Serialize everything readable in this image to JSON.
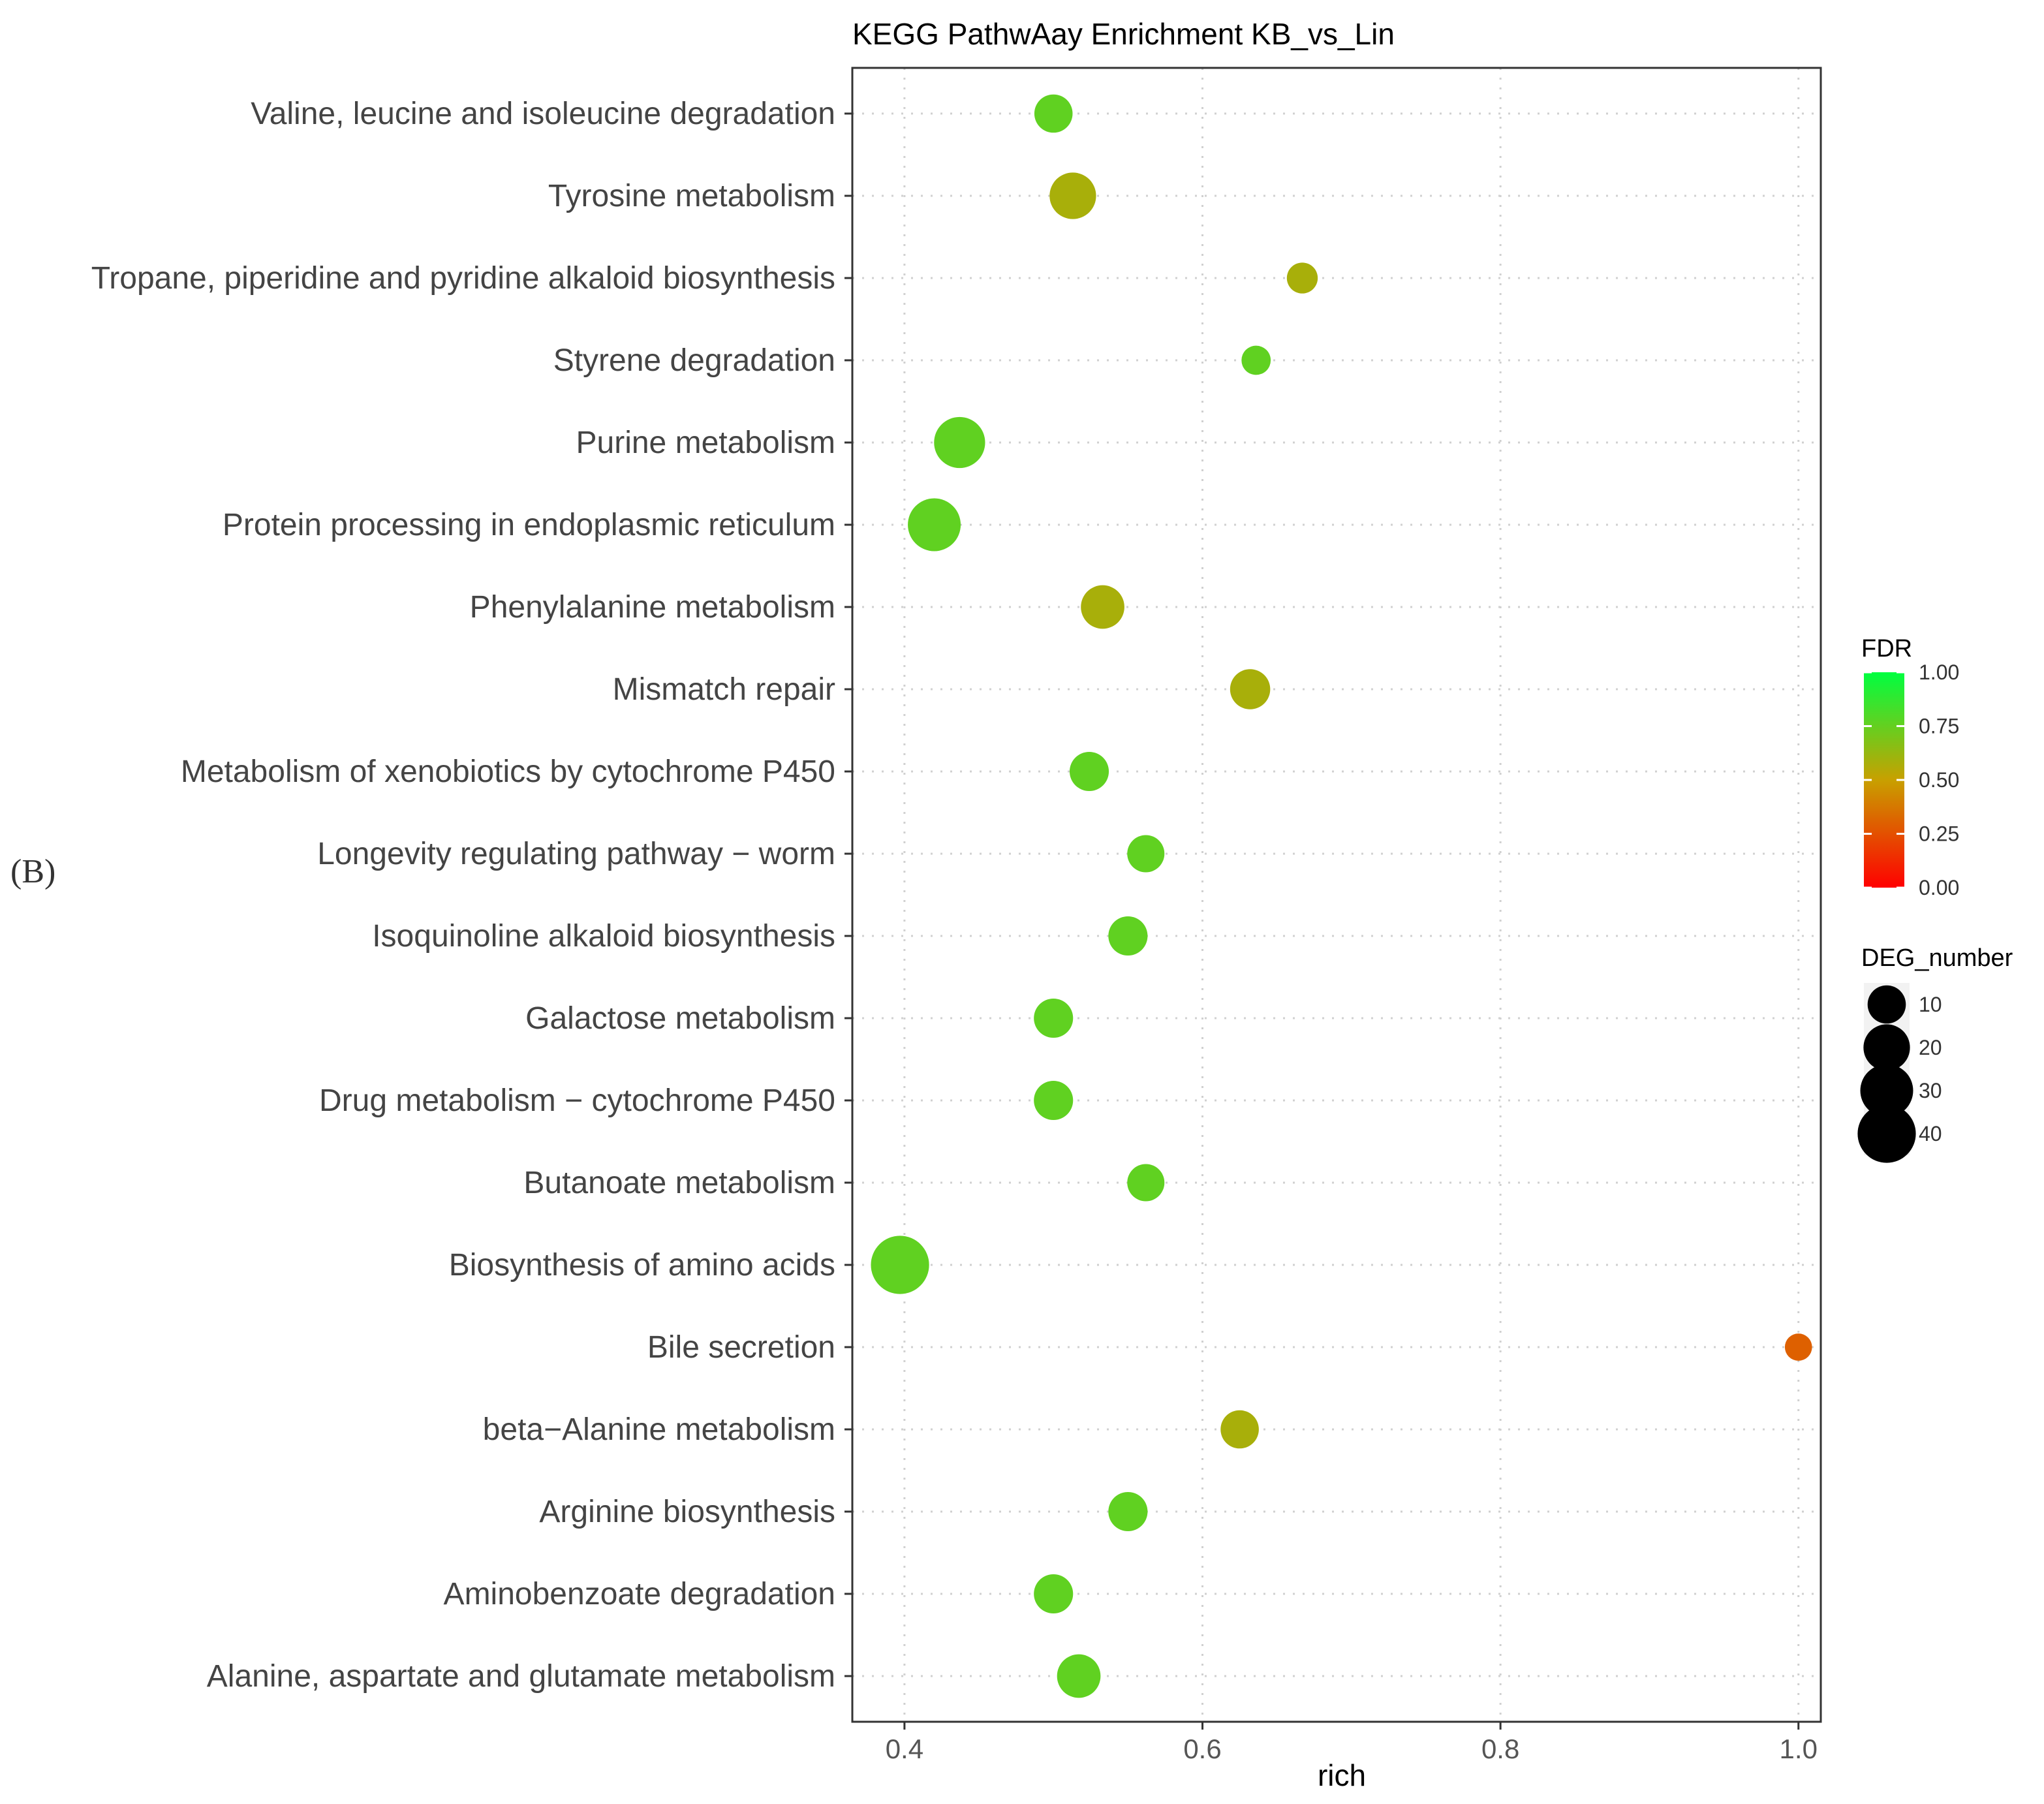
{
  "figure_label": "(B)",
  "chart_data": {
    "type": "scatter",
    "title": "KEGG PathwAay Enrichment  KB_vs_Lin",
    "xlabel": "rich",
    "ylabel": "",
    "xlim": [
      0.365,
      1.015
    ],
    "xticks": [
      0.4,
      0.6,
      0.8,
      1.0
    ],
    "xtick_labels": [
      "0.4",
      "0.6",
      "0.8",
      "1.0"
    ],
    "grid": true,
    "points": [
      {
        "pathway": "Valine, leucine and isoleucine degradation",
        "rich": 0.5,
        "deg_number": 10,
        "fdr": 0.76
      },
      {
        "pathway": "Tyrosine metabolism",
        "rich": 0.513,
        "deg_number": 20,
        "fdr": 0.58
      },
      {
        "pathway": "Tropane, piperidine and pyridine alkaloid biosynthesis",
        "rich": 0.667,
        "deg_number": 4,
        "fdr": 0.58
      },
      {
        "pathway": "Styrene degradation",
        "rich": 0.636,
        "deg_number": 3,
        "fdr": 0.76
      },
      {
        "pathway": "Purine metabolism",
        "rich": 0.437,
        "deg_number": 27,
        "fdr": 0.76
      },
      {
        "pathway": "Protein processing in endoplasmic reticulum",
        "rich": 0.42,
        "deg_number": 30,
        "fdr": 0.76
      },
      {
        "pathway": "Phenylalanine metabolism",
        "rich": 0.533,
        "deg_number": 16,
        "fdr": 0.58
      },
      {
        "pathway": "Mismatch repair",
        "rich": 0.632,
        "deg_number": 12,
        "fdr": 0.58
      },
      {
        "pathway": "Metabolism of xenobiotics by cytochrome P450",
        "rich": 0.524,
        "deg_number": 11,
        "fdr": 0.76
      },
      {
        "pathway": "Longevity regulating pathway − worm",
        "rich": 0.562,
        "deg_number": 9,
        "fdr": 0.76
      },
      {
        "pathway": "Isoquinoline alkaloid biosynthesis",
        "rich": 0.55,
        "deg_number": 11,
        "fdr": 0.76
      },
      {
        "pathway": "Galactose metabolism",
        "rich": 0.5,
        "deg_number": 11,
        "fdr": 0.76
      },
      {
        "pathway": "Drug metabolism − cytochrome P450",
        "rich": 0.5,
        "deg_number": 11,
        "fdr": 0.76
      },
      {
        "pathway": "Butanoate metabolism",
        "rich": 0.562,
        "deg_number": 9,
        "fdr": 0.76
      },
      {
        "pathway": "Biosynthesis of amino acids",
        "rich": 0.397,
        "deg_number": 40,
        "fdr": 0.76
      },
      {
        "pathway": "Bile secretion",
        "rich": 1.0,
        "deg_number": 2,
        "fdr": 0.3
      },
      {
        "pathway": "beta−Alanine metabolism",
        "rich": 0.625,
        "deg_number": 10,
        "fdr": 0.58
      },
      {
        "pathway": "Arginine biosynthesis",
        "rich": 0.55,
        "deg_number": 11,
        "fdr": 0.76
      },
      {
        "pathway": "Aminobenzoate degradation",
        "rich": 0.5,
        "deg_number": 11,
        "fdr": 0.76
      },
      {
        "pathway": "Alanine, aspartate and glutamate metabolism",
        "rich": 0.517,
        "deg_number": 16,
        "fdr": 0.76
      }
    ],
    "color_legend": {
      "title": "FDR",
      "range": [
        0.0,
        1.0
      ],
      "ticks": [
        1.0,
        0.75,
        0.5,
        0.25,
        0.0
      ],
      "tick_labels": [
        "1.00",
        "0.75",
        "0.50",
        "0.25",
        "0.00"
      ],
      "colors": [
        "#ff0000",
        "#c8a000",
        "#00ff40"
      ]
    },
    "size_legend": {
      "title": "DEG_number",
      "values": [
        10,
        20,
        30,
        40
      ],
      "labels": [
        "10",
        "20",
        "30",
        "40"
      ]
    }
  }
}
